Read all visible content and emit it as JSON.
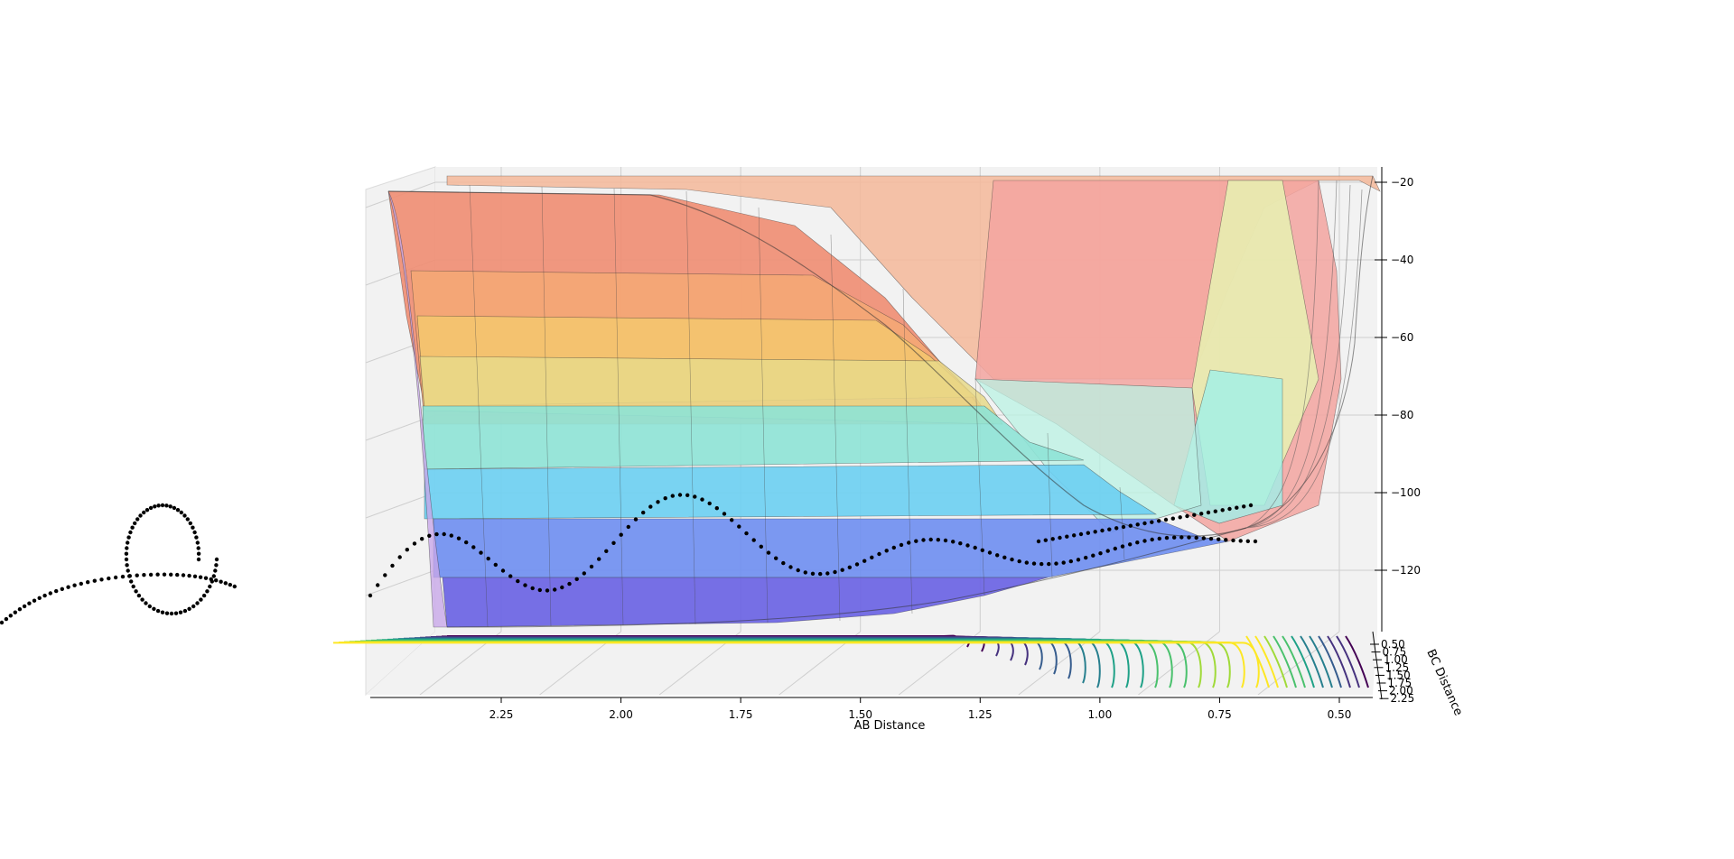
{
  "chart_data": {
    "type": "surface",
    "projection": "3d",
    "title": "",
    "xlabel": "AB Distance",
    "ylabel": "BC Distance",
    "zlabel": "",
    "x_ticks": [
      "2.25",
      "2.00",
      "1.75",
      "1.50",
      "1.25",
      "1.00",
      "0.75",
      "0.50"
    ],
    "y_ticks": [
      "0.50",
      "0.75",
      "1.00",
      "1.25",
      "1.50",
      "1.75",
      "2.00",
      "2.25"
    ],
    "z_ticks": [
      "−20",
      "−40",
      "−60",
      "−80",
      "−100",
      "−120"
    ],
    "x_values": [
      2.25,
      2.0,
      1.75,
      1.5,
      1.25,
      1.0,
      0.75,
      0.5
    ],
    "z_values": [
      -20,
      -40,
      -60,
      -80,
      -100,
      -120
    ],
    "xlim": [
      0.4,
      2.5
    ],
    "ylim": [
      0.5,
      2.3
    ],
    "zlim": [
      -138,
      -20
    ],
    "surface_colormap": "jet",
    "contour_colormap": "viridis",
    "trajectory_color": "#000000",
    "grid": true
  }
}
